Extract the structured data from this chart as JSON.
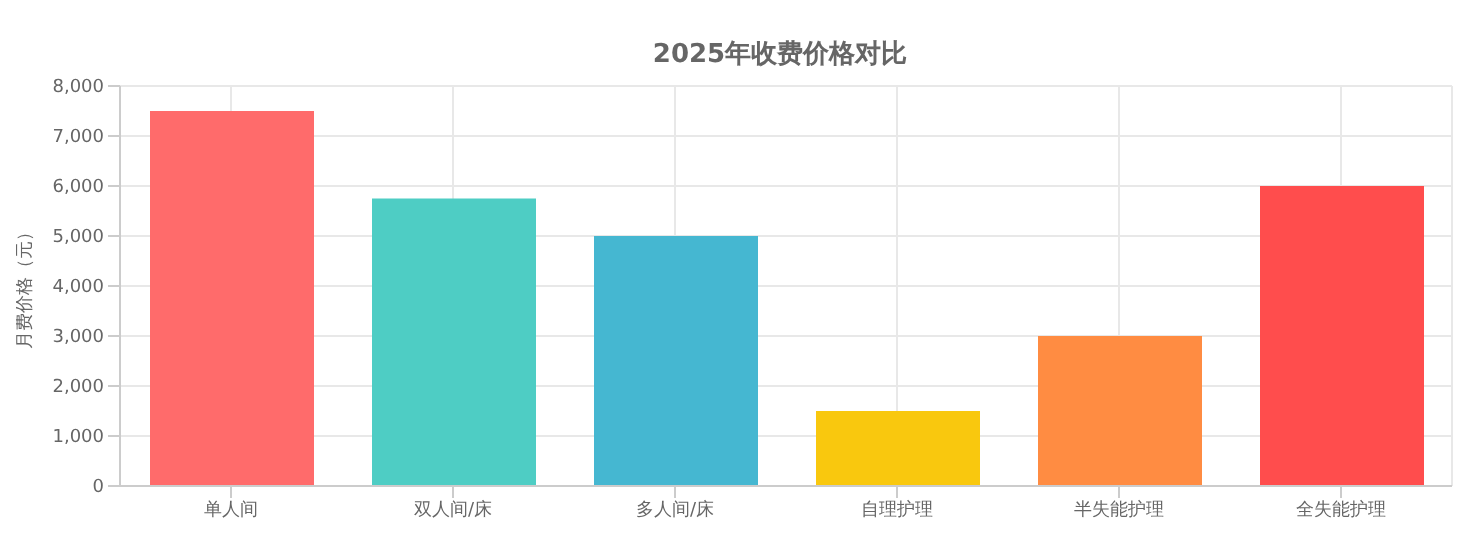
{
  "chart_data": {
    "type": "bar",
    "title": "2025年收费价格对比",
    "ylabel": "月费价格（元）",
    "categories": [
      "单人间",
      "双人间/床",
      "多人间/床",
      "自理护理",
      "半失能护理",
      "全失能护理"
    ],
    "values": [
      7500,
      5750,
      5000,
      1500,
      3000,
      6000
    ],
    "colors": [
      "#ff6b6b",
      "#4ecdc4",
      "#45b7d1",
      "#f9c80e",
      "#ff8c42",
      "#ff4d4d"
    ],
    "ylim": [
      0,
      8000
    ],
    "yticks": [
      0,
      {
        "value": 1000,
        "label": "1,000"
      },
      {
        "value": 2000,
        "label": "2,000"
      },
      {
        "value": 3000,
        "label": "3,000"
      },
      {
        "value": 4000,
        "label": "4,000"
      },
      {
        "value": 5000,
        "label": "5,000"
      },
      {
        "value": 6000,
        "label": "6,000"
      },
      {
        "value": 7000,
        "label": "7,000"
      },
      {
        "value": 8000,
        "label": "8,000"
      }
    ],
    "grid": true
  }
}
